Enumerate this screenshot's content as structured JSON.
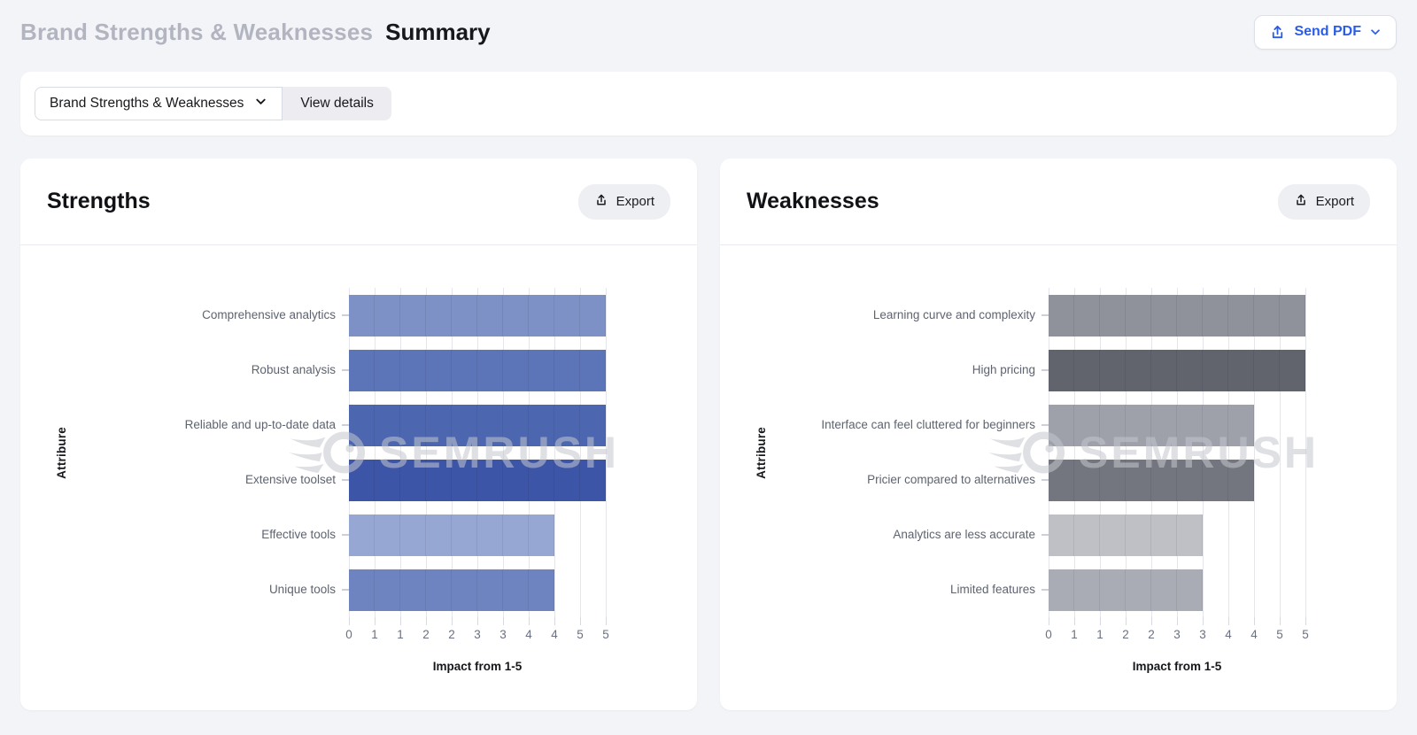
{
  "header": {
    "breadcrumb": "Brand Strengths & Weaknesses",
    "title": "Summary",
    "send_pdf_label": "Send PDF"
  },
  "toolbar": {
    "selector_label": "Brand Strengths & Weaknesses",
    "view_details_label": "View details"
  },
  "watermark": {
    "text": "SEMRUSH"
  },
  "cards": [
    {
      "title": "Strengths",
      "export_label": "Export"
    },
    {
      "title": "Weaknesses",
      "export_label": "Export"
    }
  ],
  "colors": {
    "page_background": "#f3f4f8",
    "card_background": "#ffffff",
    "accent_blue": "#2a5ce8",
    "muted_heading": "#b2b5c0",
    "grid_line": "#e4e6ec"
  },
  "chart_data": [
    {
      "type": "bar",
      "orientation": "horizontal",
      "title": "Strengths",
      "categories": [
        "Comprehensive analytics",
        "Robust analysis",
        "Reliable and up-to-date data",
        "Extensive toolset",
        "Effective tools",
        "Unique tools"
      ],
      "values": [
        5,
        5,
        5,
        5,
        4,
        4
      ],
      "bar_colors": [
        "#7D91C7",
        "#5C74B8",
        "#4C66B0",
        "#3D55A6",
        "#96A7D4",
        "#6D84C1"
      ],
      "xlabel": "Impact from 1-5",
      "ylabel": "Attribure",
      "xlim": [
        0,
        5
      ],
      "x_tick_labels": [
        "0",
        "1",
        "1",
        "2",
        "2",
        "3",
        "3",
        "4",
        "4",
        "5",
        "5"
      ],
      "grid": true,
      "legend": false
    },
    {
      "type": "bar",
      "orientation": "horizontal",
      "title": "Weaknesses",
      "categories": [
        "Learning curve and complexity",
        "High pricing",
        "Interface can feel cluttered for beginners",
        "Pricier compared to alternatives",
        "Analytics are less accurate",
        "Limited features"
      ],
      "values": [
        5,
        5,
        4,
        4,
        3,
        3
      ],
      "bar_colors": [
        "#8F919B",
        "#61636D",
        "#9EA1AA",
        "#73757F",
        "#BEC0C6",
        "#A9ACB4"
      ],
      "xlabel": "Impact from 1-5",
      "ylabel": "Attribure",
      "xlim": [
        0,
        5
      ],
      "x_tick_labels": [
        "0",
        "1",
        "1",
        "2",
        "2",
        "3",
        "3",
        "4",
        "4",
        "5",
        "5"
      ],
      "grid": true,
      "legend": false
    }
  ]
}
